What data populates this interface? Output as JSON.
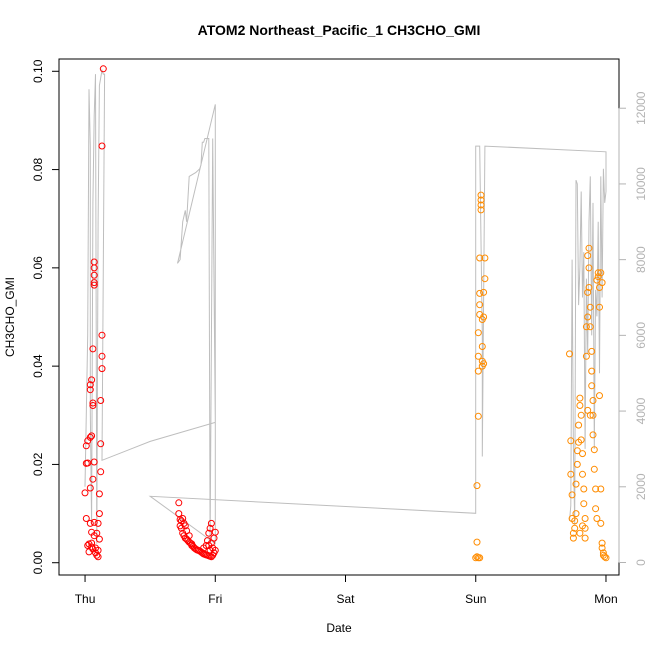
{
  "chart_data": {
    "type": "scatter",
    "title": "ATOM2 Northeast_Pacific_1 CH3CHO_GMI",
    "xlabel": "Date",
    "ylabel": "CH3CHO_GMI",
    "x_unit": "days since Thu 00:00",
    "xlim": [
      -0.2,
      4.1
    ],
    "ylim": [
      -0.0025,
      0.1025
    ],
    "y2lim": [
      -330,
      13300
    ],
    "x_ticks": [
      {
        "value": 0,
        "label": "Thu"
      },
      {
        "value": 1,
        "label": "Fri"
      },
      {
        "value": 2,
        "label": "Sat"
      },
      {
        "value": 3,
        "label": "Sun"
      },
      {
        "value": 4,
        "label": "Mon"
      }
    ],
    "y_ticks": [
      {
        "value": 0.0,
        "label": "0.00"
      },
      {
        "value": 0.02,
        "label": "0.02"
      },
      {
        "value": 0.04,
        "label": "0.04"
      },
      {
        "value": 0.06,
        "label": "0.06"
      },
      {
        "value": 0.08,
        "label": "0.08"
      },
      {
        "value": 0.1,
        "label": "0.10"
      }
    ],
    "y2_ticks": [
      {
        "value": 0,
        "label": "0"
      },
      {
        "value": 2000,
        "label": "2000"
      },
      {
        "value": 4000,
        "label": "4000"
      },
      {
        "value": 6000,
        "label": "6000"
      },
      {
        "value": 8000,
        "label": "8000"
      },
      {
        "value": 10000,
        "label": "10000"
      },
      {
        "value": 12000,
        "label": "12000"
      }
    ],
    "colors": {
      "red_series": "#ff0000",
      "orange_series": "#ff8c00",
      "altitude_line": "#bebebe"
    },
    "series": [
      {
        "color": "red",
        "points": [
          [
            0.0,
            0.0142
          ],
          [
            0.01,
            0.0202
          ],
          [
            0.01,
            0.0238
          ],
          [
            0.02,
            0.0248
          ],
          [
            0.02,
            0.0203
          ],
          [
            0.01,
            0.009
          ],
          [
            0.02,
            0.0035
          ],
          [
            0.03,
            0.0022
          ],
          [
            0.03,
            0.0038
          ],
          [
            0.04,
            0.008
          ],
          [
            0.04,
            0.0152
          ],
          [
            0.04,
            0.0255
          ],
          [
            0.04,
            0.0352
          ],
          [
            0.04,
            0.0362
          ],
          [
            0.05,
            0.0372
          ],
          [
            0.05,
            0.0258
          ],
          [
            0.05,
            0.0062
          ],
          [
            0.05,
            0.004
          ],
          [
            0.06,
            0.017
          ],
          [
            0.06,
            0.0325
          ],
          [
            0.06,
            0.032
          ],
          [
            0.06,
            0.0435
          ],
          [
            0.07,
            0.057
          ],
          [
            0.07,
            0.0565
          ],
          [
            0.07,
            0.0585
          ],
          [
            0.07,
            0.06
          ],
          [
            0.07,
            0.0612
          ],
          [
            0.07,
            0.0205
          ],
          [
            0.07,
            0.0082
          ],
          [
            0.07,
            0.0055
          ],
          [
            0.08,
            0.003
          ],
          [
            0.08,
            0.002
          ],
          [
            0.09,
            0.0015
          ],
          [
            0.1,
            0.0012
          ],
          [
            0.1,
            0.0025
          ],
          [
            0.11,
            0.0048
          ],
          [
            0.11,
            0.01
          ],
          [
            0.11,
            0.014
          ],
          [
            0.12,
            0.0185
          ],
          [
            0.12,
            0.0242
          ],
          [
            0.12,
            0.033
          ],
          [
            0.13,
            0.0395
          ],
          [
            0.13,
            0.042
          ],
          [
            0.13,
            0.0463
          ],
          [
            0.13,
            0.0848
          ],
          [
            0.14,
            0.1005
          ],
          [
            0.06,
            0.0028
          ],
          [
            0.05,
            0.0032
          ],
          [
            0.09,
            0.006
          ],
          [
            0.1,
            0.008
          ],
          [
            0.72,
            0.0122
          ],
          [
            0.72,
            0.01
          ],
          [
            0.73,
            0.0088
          ],
          [
            0.73,
            0.0075
          ],
          [
            0.74,
            0.007
          ],
          [
            0.74,
            0.0085
          ],
          [
            0.75,
            0.006
          ],
          [
            0.75,
            0.009
          ],
          [
            0.76,
            0.0055
          ],
          [
            0.76,
            0.008
          ],
          [
            0.77,
            0.005
          ],
          [
            0.77,
            0.0075
          ],
          [
            0.78,
            0.0048
          ],
          [
            0.78,
            0.0065
          ],
          [
            0.79,
            0.0045
          ],
          [
            0.8,
            0.0042
          ],
          [
            0.8,
            0.0055
          ],
          [
            0.81,
            0.004
          ],
          [
            0.82,
            0.0038
          ],
          [
            0.82,
            0.0035
          ],
          [
            0.83,
            0.0033
          ],
          [
            0.84,
            0.003
          ],
          [
            0.85,
            0.0028
          ],
          [
            0.86,
            0.0026
          ],
          [
            0.87,
            0.0025
          ],
          [
            0.88,
            0.0024
          ],
          [
            0.89,
            0.0022
          ],
          [
            0.9,
            0.002
          ],
          [
            0.91,
            0.003
          ],
          [
            0.91,
            0.0018
          ],
          [
            0.92,
            0.0017
          ],
          [
            0.93,
            0.0016
          ],
          [
            0.93,
            0.0035
          ],
          [
            0.94,
            0.0015
          ],
          [
            0.94,
            0.0045
          ],
          [
            0.95,
            0.0014
          ],
          [
            0.95,
            0.006
          ],
          [
            0.96,
            0.0013
          ],
          [
            0.96,
            0.007
          ],
          [
            0.97,
            0.0012
          ],
          [
            0.97,
            0.008
          ],
          [
            0.98,
            0.0015
          ],
          [
            0.98,
            0.003
          ],
          [
            0.99,
            0.002
          ],
          [
            0.99,
            0.005
          ],
          [
            1.0,
            0.0025
          ],
          [
            1.0,
            0.0062
          ],
          [
            0.97,
            0.004
          ],
          [
            0.96,
            0.0025
          ],
          [
            0.95,
            0.0035
          ]
        ]
      },
      {
        "color": "orange",
        "points": [
          [
            3.0,
            0.001
          ],
          [
            3.01,
            0.0012
          ],
          [
            3.01,
            0.0042
          ],
          [
            3.01,
            0.0157
          ],
          [
            3.02,
            0.0298
          ],
          [
            3.02,
            0.039
          ],
          [
            3.02,
            0.042
          ],
          [
            3.02,
            0.0468
          ],
          [
            3.03,
            0.0505
          ],
          [
            3.03,
            0.0525
          ],
          [
            3.03,
            0.0548
          ],
          [
            3.03,
            0.062
          ],
          [
            3.04,
            0.0728
          ],
          [
            3.04,
            0.0738
          ],
          [
            3.04,
            0.0748
          ],
          [
            3.04,
            0.0718
          ],
          [
            3.05,
            0.0495
          ],
          [
            3.05,
            0.044
          ],
          [
            3.05,
            0.041
          ],
          [
            3.05,
            0.04
          ],
          [
            3.06,
            0.0405
          ],
          [
            3.06,
            0.05
          ],
          [
            3.06,
            0.055
          ],
          [
            3.07,
            0.0578
          ],
          [
            3.07,
            0.062
          ],
          [
            3.02,
            0.001
          ],
          [
            3.03,
            0.001
          ],
          [
            3.72,
            0.0425
          ],
          [
            3.73,
            0.0248
          ],
          [
            3.73,
            0.018
          ],
          [
            3.74,
            0.0138
          ],
          [
            3.74,
            0.009
          ],
          [
            3.75,
            0.006
          ],
          [
            3.75,
            0.005
          ],
          [
            3.76,
            0.007
          ],
          [
            3.76,
            0.0085
          ],
          [
            3.77,
            0.01
          ],
          [
            3.77,
            0.016
          ],
          [
            3.78,
            0.02
          ],
          [
            3.78,
            0.0228
          ],
          [
            3.79,
            0.0245
          ],
          [
            3.79,
            0.028
          ],
          [
            3.8,
            0.032
          ],
          [
            3.8,
            0.0335
          ],
          [
            3.81,
            0.03
          ],
          [
            3.81,
            0.025
          ],
          [
            3.82,
            0.0222
          ],
          [
            3.82,
            0.018
          ],
          [
            3.83,
            0.015
          ],
          [
            3.83,
            0.012
          ],
          [
            3.84,
            0.009
          ],
          [
            3.84,
            0.007
          ],
          [
            3.85,
            0.042
          ],
          [
            3.85,
            0.048
          ],
          [
            3.86,
            0.05
          ],
          [
            3.86,
            0.055
          ],
          [
            3.86,
            0.0625
          ],
          [
            3.87,
            0.064
          ],
          [
            3.87,
            0.06
          ],
          [
            3.87,
            0.056
          ],
          [
            3.88,
            0.052
          ],
          [
            3.88,
            0.048
          ],
          [
            3.89,
            0.043
          ],
          [
            3.89,
            0.039
          ],
          [
            3.89,
            0.036
          ],
          [
            3.9,
            0.033
          ],
          [
            3.9,
            0.03
          ],
          [
            3.9,
            0.026
          ],
          [
            3.91,
            0.023
          ],
          [
            3.91,
            0.019
          ],
          [
            3.92,
            0.015
          ],
          [
            3.92,
            0.011
          ],
          [
            3.93,
            0.009
          ],
          [
            3.93,
            0.0575
          ],
          [
            3.94,
            0.059
          ],
          [
            3.94,
            0.0582
          ],
          [
            3.95,
            0.056
          ],
          [
            3.95,
            0.052
          ],
          [
            3.95,
            0.034
          ],
          [
            3.96,
            0.015
          ],
          [
            3.96,
            0.008
          ],
          [
            3.97,
            0.004
          ],
          [
            3.97,
            0.003
          ],
          [
            3.98,
            0.002
          ],
          [
            3.98,
            0.0015
          ],
          [
            3.99,
            0.0012
          ],
          [
            4.0,
            0.001
          ],
          [
            3.96,
            0.059
          ],
          [
            3.97,
            0.057
          ],
          [
            3.86,
            0.031
          ],
          [
            3.88,
            0.03
          ],
          [
            3.8,
            0.006
          ],
          [
            3.82,
            0.0075
          ],
          [
            3.84,
            0.005
          ]
        ]
      }
    ],
    "altitude_line": [
      [
        0.0,
        2000
      ],
      [
        0.02,
        6000
      ],
      [
        0.03,
        12500
      ],
      [
        0.04,
        11000
      ],
      [
        0.04,
        4000
      ],
      [
        0.05,
        1000
      ],
      [
        0.06,
        9500
      ],
      [
        0.07,
        11800
      ],
      [
        0.08,
        12900
      ],
      [
        0.09,
        500
      ],
      [
        0.1,
        9000
      ],
      [
        0.11,
        12600
      ],
      [
        0.12,
        12800
      ],
      [
        0.13,
        13000
      ],
      [
        0.14,
        12900
      ],
      [
        0.15,
        12900
      ],
      [
        0.13,
        2700
      ],
      [
        0.5,
        3200
      ],
      [
        1.0,
        3700
      ],
      [
        0.98,
        11200
      ],
      [
        0.96,
        500
      ],
      [
        0.95,
        11200
      ],
      [
        0.92,
        11200
      ],
      [
        0.91,
        11100
      ],
      [
        0.9,
        11100
      ],
      [
        0.89,
        10500
      ],
      [
        0.88,
        10400
      ],
      [
        0.85,
        10300
      ],
      [
        0.8,
        10200
      ],
      [
        0.78,
        9000
      ],
      [
        0.77,
        9300
      ],
      [
        0.75,
        9000
      ],
      [
        0.73,
        8000
      ],
      [
        0.71,
        7900
      ],
      [
        1.0,
        12100
      ],
      [
        1.0,
        500
      ],
      [
        0.5,
        1750
      ],
      [
        3.0,
        1300
      ],
      [
        3.0,
        11000
      ],
      [
        3.03,
        11000
      ],
      [
        3.05,
        6000
      ],
      [
        3.05,
        2800
      ],
      [
        3.07,
        11000
      ],
      [
        4.0,
        10850
      ],
      [
        4.0,
        9800
      ],
      [
        3.99,
        9500
      ],
      [
        3.98,
        10400
      ],
      [
        3.97,
        7000
      ],
      [
        3.96,
        10200
      ],
      [
        3.95,
        5000
      ],
      [
        3.94,
        9000
      ],
      [
        3.93,
        6500
      ],
      [
        3.92,
        7200
      ],
      [
        3.91,
        3000
      ],
      [
        3.9,
        9500
      ],
      [
        3.89,
        6000
      ],
      [
        3.88,
        10200
      ],
      [
        3.87,
        9000
      ],
      [
        3.86,
        5500
      ],
      [
        3.85,
        7500
      ],
      [
        3.84,
        3000
      ],
      [
        3.83,
        8200
      ],
      [
        3.82,
        7000
      ],
      [
        3.81,
        9800
      ],
      [
        3.8,
        7800
      ],
      [
        3.79,
        6800
      ],
      [
        3.78,
        10000
      ],
      [
        3.77,
        10100
      ],
      [
        3.76,
        1000
      ],
      [
        3.75,
        3000
      ],
      [
        3.74,
        8000
      ],
      [
        3.73,
        1500
      ],
      [
        3.72,
        1100
      ]
    ]
  }
}
